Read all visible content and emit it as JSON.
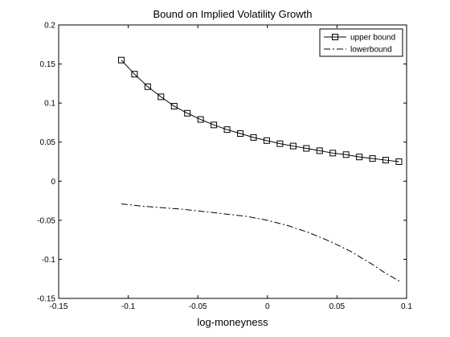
{
  "chart_data": {
    "type": "line",
    "title": "Bound on Implied Volatility Growth",
    "xlabel": "log-moneyness",
    "ylabel": "",
    "xlim": [
      -0.15,
      0.1
    ],
    "ylim": [
      -0.15,
      0.2
    ],
    "xticks": [
      -0.15,
      -0.1,
      -0.05,
      0,
      0.05,
      0.1
    ],
    "xtick_labels": [
      "-0.15",
      "-0.1",
      "-0.05",
      "0",
      "0.05",
      "0.1"
    ],
    "yticks": [
      -0.15,
      -0.1,
      -0.05,
      0,
      0.05,
      0.1,
      0.15,
      0.2
    ],
    "ytick_labels": [
      "-0.15",
      "-0.1",
      "-0.05",
      "0",
      "0.05",
      "0.1",
      "0.15",
      "0.2"
    ],
    "grid": false,
    "legend_position": "top-right",
    "series": [
      {
        "name": "upper bound",
        "line_style": "solid",
        "marker": "square",
        "color": "#000000",
        "x": [
          -0.105,
          -0.0955,
          -0.086,
          -0.0765,
          -0.067,
          -0.0575,
          -0.048,
          -0.0385,
          -0.029,
          -0.0195,
          -0.01,
          -0.0005,
          0.009,
          0.0185,
          0.028,
          0.0375,
          0.047,
          0.0565,
          0.066,
          0.0755,
          0.085,
          0.0945
        ],
        "y": [
          0.155,
          0.137,
          0.121,
          0.108,
          0.096,
          0.087,
          0.079,
          0.072,
          0.066,
          0.061,
          0.056,
          0.052,
          0.048,
          0.045,
          0.042,
          0.039,
          0.036,
          0.034,
          0.031,
          0.029,
          0.027,
          0.025
        ]
      },
      {
        "name": "lowerbound",
        "line_style": "dashdot",
        "marker": "none",
        "color": "#000000",
        "x": [
          -0.105,
          -0.09,
          -0.075,
          -0.06,
          -0.045,
          -0.03,
          -0.015,
          0,
          0.015,
          0.03,
          0.045,
          0.06,
          0.075,
          0.085,
          0.095
        ],
        "y": [
          -0.029,
          -0.032,
          -0.034,
          -0.036,
          -0.039,
          -0.042,
          -0.045,
          -0.05,
          -0.057,
          -0.066,
          -0.077,
          -0.09,
          -0.106,
          -0.118,
          -0.128
        ]
      }
    ]
  }
}
